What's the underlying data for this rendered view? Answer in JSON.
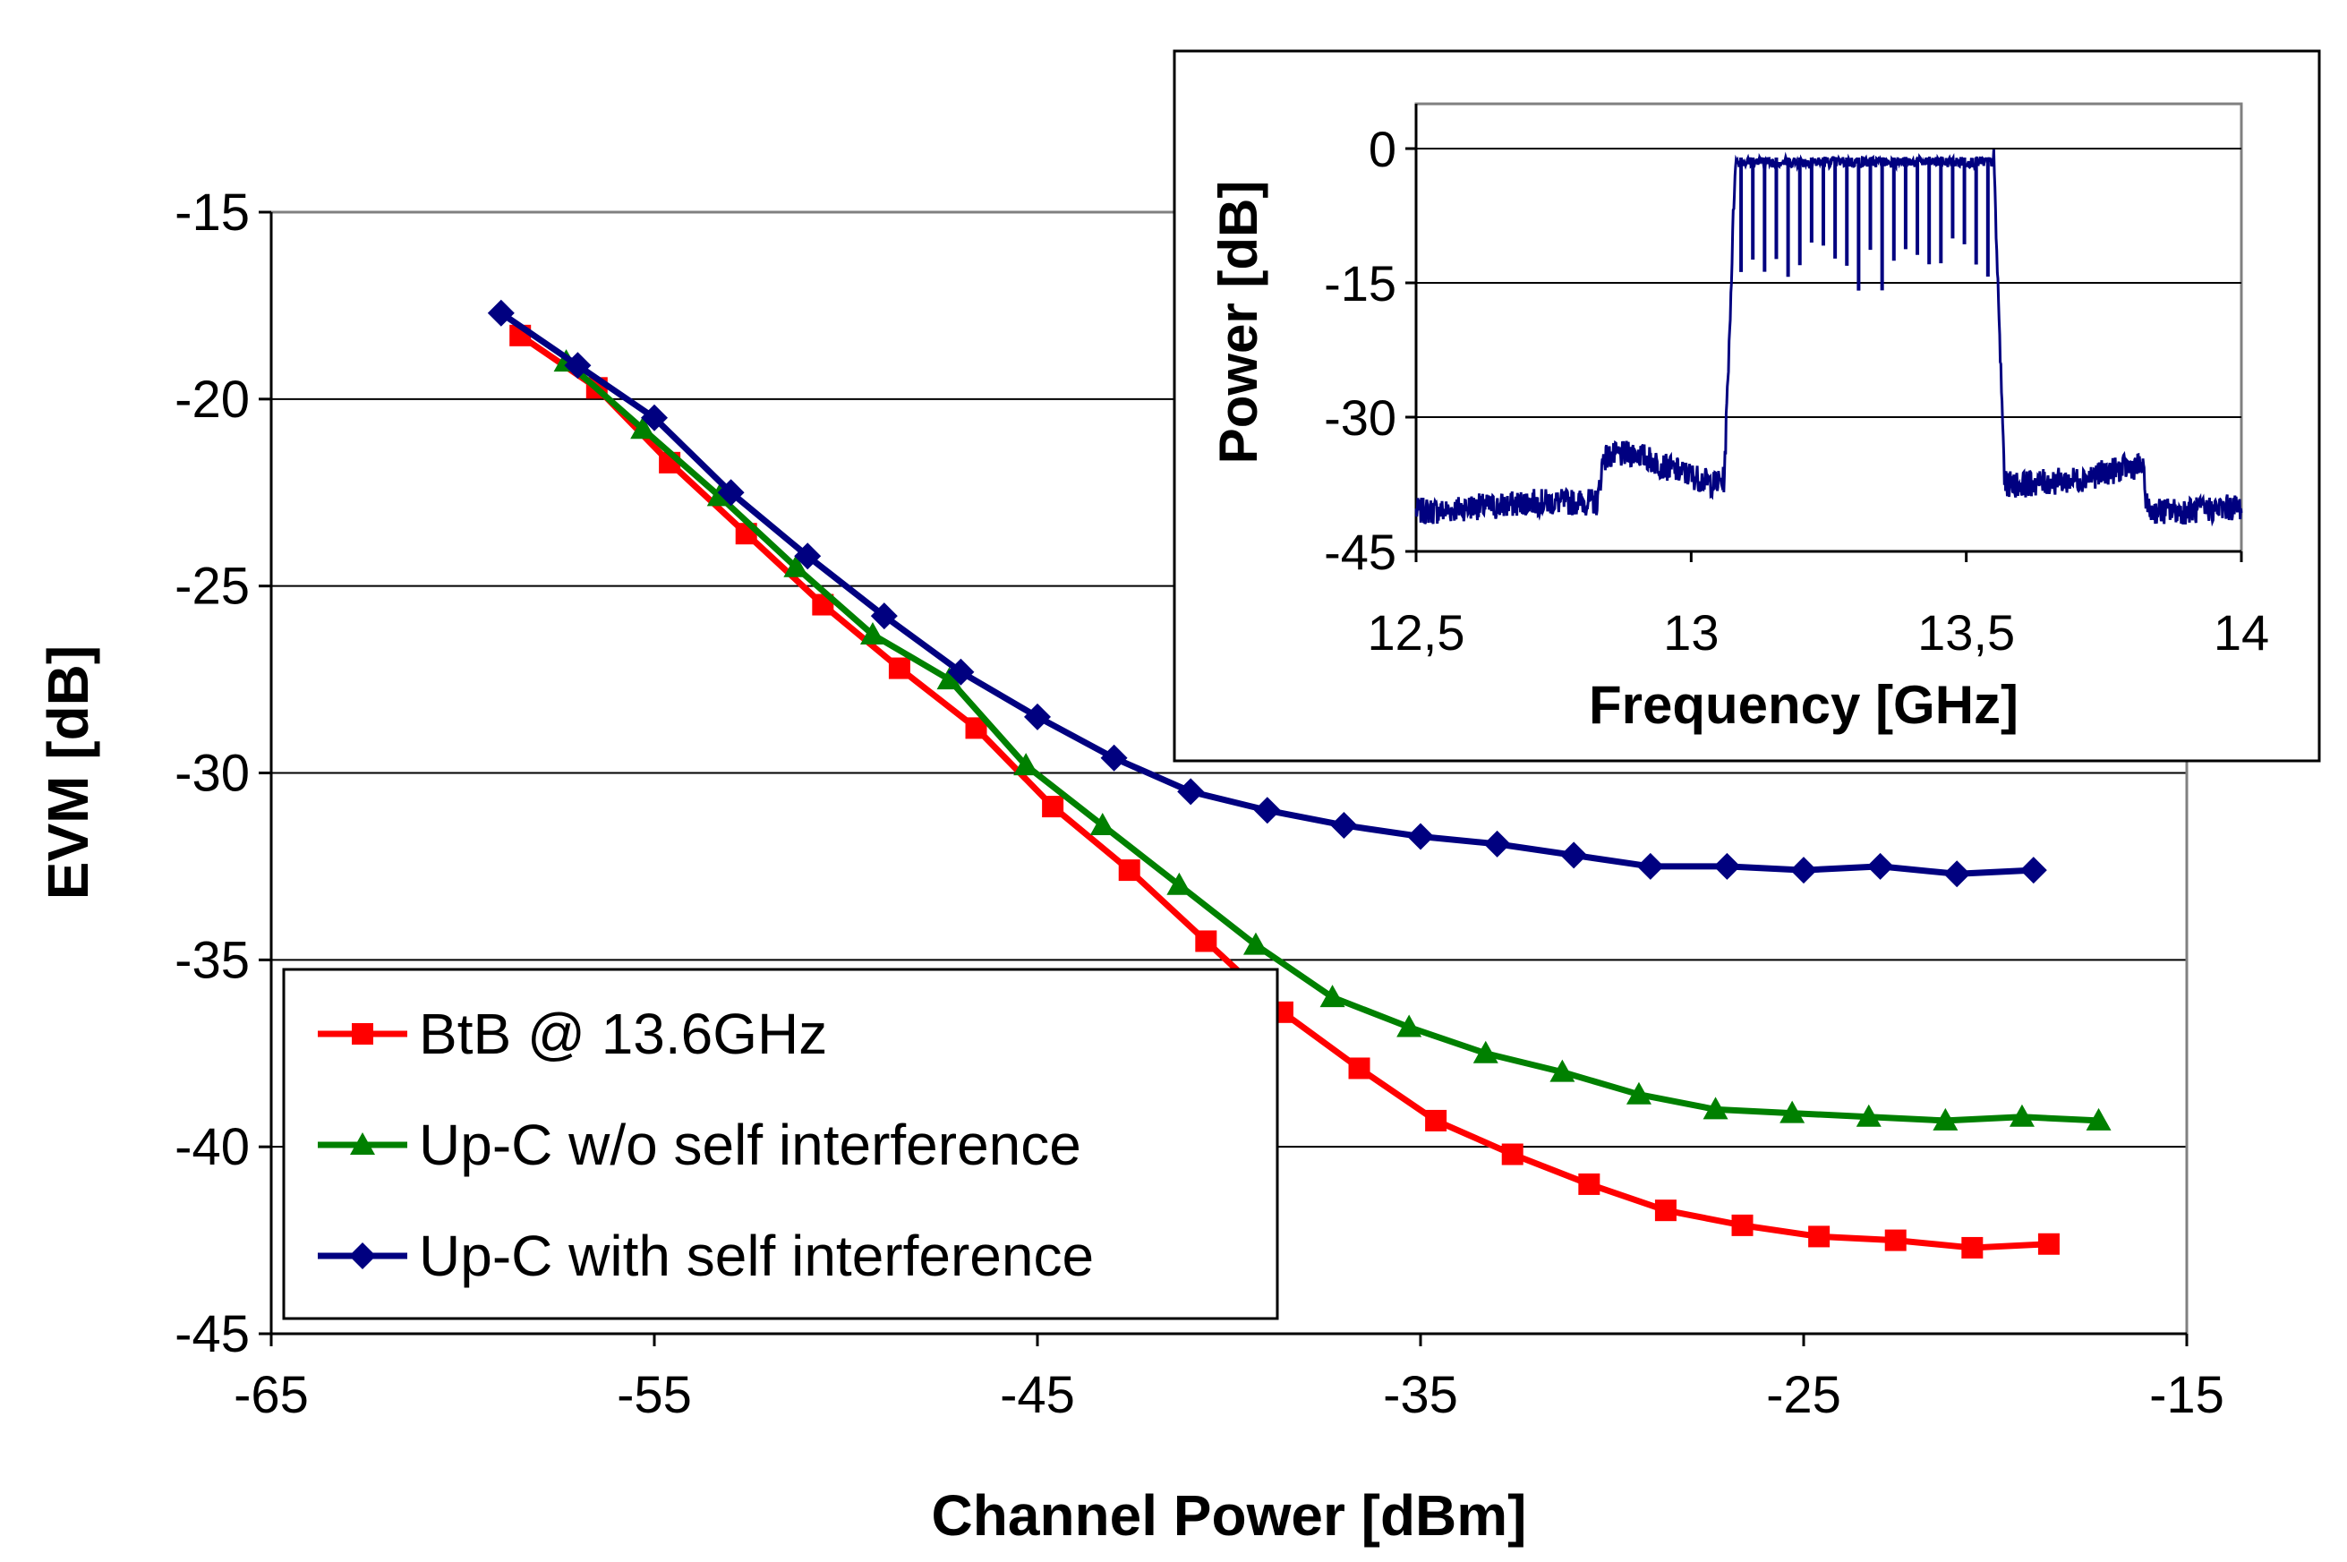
{
  "chart_data": [
    {
      "type": "line",
      "title": "",
      "xlabel": "Channel Power [dBm]",
      "ylabel": "EVM [dB]",
      "xlim": [
        -65,
        -15
      ],
      "ylim": [
        -45,
        -15
      ],
      "xticks": [
        "-65",
        "-55",
        "-45",
        "-35",
        "-25",
        "-15"
      ],
      "yticks": [
        "-15",
        "-20",
        "-25",
        "-30",
        "-35",
        "-40",
        "-45"
      ],
      "grid": "horizontal",
      "legend_position": "bottom-left",
      "series": [
        {
          "name": "BtB @ 13.6GHz",
          "color": "#ff0000",
          "marker": "square",
          "x": [
            -58.5,
            -56.5,
            -54.6,
            -52.6,
            -50.6,
            -48.6,
            -46.6,
            -44.6,
            -42.6,
            -40.6,
            -38.6,
            -36.6,
            -34.6,
            -32.6,
            -30.6,
            -28.6,
            -26.6,
            -24.6,
            -22.6,
            -20.6,
            -18.6
          ],
          "y": [
            -18.3,
            -19.7,
            -21.7,
            -23.6,
            -25.5,
            -27.2,
            -28.8,
            -30.9,
            -32.6,
            -34.5,
            -36.4,
            -37.9,
            -39.3,
            -40.2,
            -41.0,
            -41.7,
            -42.1,
            -42.4,
            -42.5,
            -42.7,
            -42.6
          ]
        },
        {
          "name": "Up-C w/o self interference",
          "color": "#008000",
          "marker": "triangle",
          "x": [
            -57.3,
            -55.3,
            -53.3,
            -51.3,
            -49.3,
            -47.3,
            -45.3,
            -43.3,
            -41.3,
            -39.3,
            -37.3,
            -35.3,
            -33.3,
            -31.3,
            -29.3,
            -27.3,
            -25.3,
            -23.3,
            -21.3,
            -19.3,
            -17.3
          ],
          "y": [
            -19.0,
            -20.8,
            -22.6,
            -24.5,
            -26.3,
            -27.5,
            -29.8,
            -31.4,
            -33.0,
            -34.6,
            -36.0,
            -36.8,
            -37.5,
            -38.0,
            -38.6,
            -39.0,
            -39.1,
            -39.2,
            -39.3,
            -39.2,
            -39.3
          ]
        },
        {
          "name": "Up-C with self interference",
          "color": "#000080",
          "marker": "diamond",
          "x": [
            -59.0,
            -57.0,
            -55.0,
            -53.0,
            -51.0,
            -49.0,
            -47.0,
            -45.0,
            -43.0,
            -41.0,
            -39.0,
            -37.0,
            -35.0,
            -33.0,
            -31.0,
            -29.0,
            -27.0,
            -25.0,
            -23.0,
            -21.0,
            -19.0
          ],
          "y": [
            -17.7,
            -19.1,
            -20.5,
            -22.5,
            -24.2,
            -25.8,
            -27.3,
            -28.5,
            -29.6,
            -30.5,
            -31.0,
            -31.4,
            -31.7,
            -31.9,
            -32.2,
            -32.5,
            -32.5,
            -32.6,
            -32.5,
            -32.7,
            -32.6
          ]
        }
      ]
    },
    {
      "type": "line",
      "title": "",
      "xlabel": "Frequency [GHz]",
      "ylabel": "Power [dB]",
      "xlim": [
        12.5,
        14
      ],
      "ylim": [
        -45,
        5
      ],
      "xticks": [
        "12,5",
        "13",
        "13,5",
        "14"
      ],
      "yticks": [
        "0",
        "-15",
        "-30",
        "-45"
      ],
      "grid": "horizontal",
      "series": [
        {
          "name": "spectrum",
          "color": "#000080",
          "x": [
            12.5,
            12.55,
            12.6,
            12.65,
            12.7,
            12.75,
            12.8,
            12.83,
            12.84,
            12.9,
            12.95,
            13.0,
            13.04,
            13.06,
            13.07,
            13.08,
            13.3,
            13.55,
            13.56,
            13.57,
            13.6,
            13.7,
            13.8,
            13.82,
            13.83,
            13.9,
            14.0
          ],
          "y": [
            -40.5,
            -40.5,
            -40.0,
            -40.0,
            -39.5,
            -39.5,
            -39.5,
            -39.5,
            -34.5,
            -34.0,
            -35.5,
            -36.5,
            -37.5,
            -37.0,
            -20.0,
            -1.5,
            -1.5,
            -1.5,
            -20.0,
            -37.5,
            -37.5,
            -37.0,
            -35.5,
            -35.5,
            -40.5,
            -40.5,
            -40.0
          ],
          "notch_lines": 22,
          "notch_range": [
            13.08,
            13.55
          ],
          "notch_depth_db": [
            -10,
            -16
          ]
        }
      ]
    }
  ]
}
